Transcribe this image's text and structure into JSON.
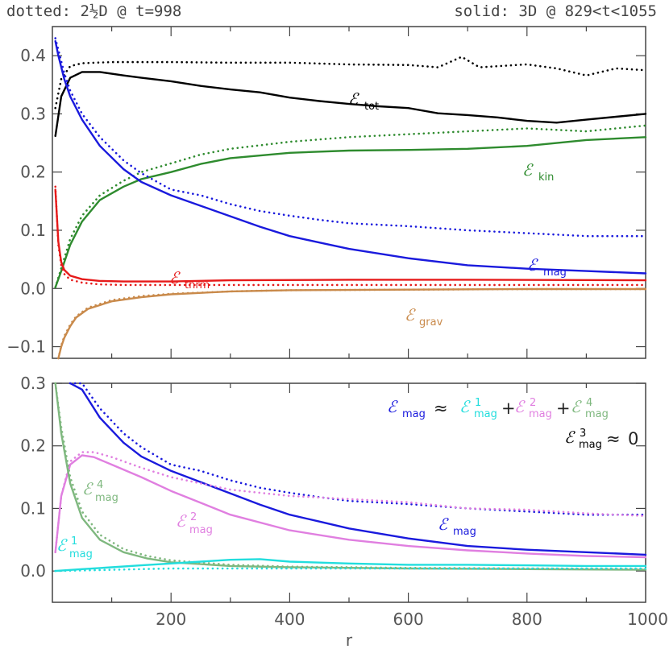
{
  "header": {
    "left": "dotted: 2½D @ t=998",
    "right": "solid: 3D @ 829<t<1055"
  },
  "chart_data": [
    {
      "type": "line",
      "panel": "top",
      "xlim": [
        0,
        1000
      ],
      "ylim": [
        -0.12,
        0.45
      ],
      "yticks": [
        "0.4",
        "0.3",
        "0.2",
        "0.1",
        "0.0",
        "−0.1"
      ],
      "series": [
        {
          "name": "E_tot",
          "label": "ℰ",
          "sub": "tot",
          "color": "#000000",
          "style": "solid",
          "x": [
            5,
            15,
            30,
            50,
            80,
            120,
            150,
            200,
            250,
            300,
            350,
            400,
            450,
            500,
            550,
            600,
            650,
            700,
            750,
            800,
            850,
            900,
            950,
            1000
          ],
          "y": [
            0.262,
            0.33,
            0.362,
            0.372,
            0.372,
            0.366,
            0.362,
            0.356,
            0.348,
            0.342,
            0.337,
            0.328,
            0.322,
            0.317,
            0.313,
            0.31,
            0.301,
            0.298,
            0.294,
            0.288,
            0.285,
            0.29,
            0.295,
            0.3
          ]
        },
        {
          "name": "E_tot 2.5D",
          "color": "#000000",
          "style": "dotted",
          "x": [
            5,
            15,
            30,
            50,
            100,
            200,
            300,
            400,
            500,
            600,
            650,
            690,
            720,
            800,
            850,
            900,
            950,
            1000
          ],
          "y": [
            0.31,
            0.36,
            0.382,
            0.387,
            0.389,
            0.389,
            0.388,
            0.388,
            0.385,
            0.384,
            0.38,
            0.398,
            0.38,
            0.385,
            0.378,
            0.366,
            0.378,
            0.375
          ]
        },
        {
          "name": "E_kin",
          "label": "ℰ",
          "sub": "kin",
          "color": "#2e8b2e",
          "style": "solid",
          "x": [
            5,
            15,
            30,
            50,
            80,
            120,
            150,
            200,
            250,
            300,
            400,
            500,
            600,
            700,
            800,
            900,
            1000
          ],
          "y": [
            0.002,
            0.03,
            0.075,
            0.115,
            0.152,
            0.175,
            0.188,
            0.2,
            0.214,
            0.224,
            0.233,
            0.237,
            0.238,
            0.24,
            0.245,
            0.255,
            0.26
          ]
        },
        {
          "name": "E_kin 2.5D",
          "color": "#2e8b2e",
          "style": "dotted",
          "x": [
            5,
            15,
            30,
            50,
            80,
            120,
            150,
            200,
            250,
            300,
            400,
            500,
            600,
            700,
            800,
            900,
            1000
          ],
          "y": [
            0.002,
            0.035,
            0.085,
            0.125,
            0.16,
            0.185,
            0.2,
            0.215,
            0.23,
            0.24,
            0.252,
            0.26,
            0.265,
            0.27,
            0.275,
            0.27,
            0.28
          ]
        },
        {
          "name": "E_mag",
          "label": "ℰ",
          "sub": "mag",
          "color": "#1a1add",
          "style": "solid",
          "x": [
            5,
            10,
            20,
            30,
            50,
            80,
            120,
            150,
            200,
            250,
            300,
            350,
            400,
            450,
            500,
            600,
            700,
            800,
            900,
            1000
          ],
          "y": [
            0.425,
            0.4,
            0.36,
            0.33,
            0.29,
            0.245,
            0.205,
            0.183,
            0.16,
            0.142,
            0.124,
            0.106,
            0.09,
            0.079,
            0.068,
            0.052,
            0.04,
            0.034,
            0.03,
            0.026
          ]
        },
        {
          "name": "E_mag 2.5D",
          "color": "#1a1add",
          "style": "dotted",
          "x": [
            5,
            10,
            20,
            30,
            50,
            80,
            120,
            150,
            200,
            250,
            300,
            350,
            400,
            450,
            500,
            600,
            700,
            800,
            900,
            1000
          ],
          "y": [
            0.43,
            0.41,
            0.37,
            0.34,
            0.3,
            0.26,
            0.22,
            0.198,
            0.17,
            0.16,
            0.145,
            0.133,
            0.125,
            0.118,
            0.112,
            0.107,
            0.1,
            0.095,
            0.09,
            0.09
          ]
        },
        {
          "name": "E_thrm",
          "label": "ℰ",
          "sub": "thrm",
          "color": "#e61a1a",
          "style": "solid",
          "x": [
            5,
            10,
            15,
            20,
            30,
            50,
            80,
            120,
            200,
            300,
            500,
            700,
            1000
          ],
          "y": [
            0.17,
            0.08,
            0.045,
            0.032,
            0.022,
            0.016,
            0.013,
            0.012,
            0.012,
            0.014,
            0.015,
            0.015,
            0.014
          ]
        },
        {
          "name": "E_thrm 2.5D",
          "color": "#e61a1a",
          "style": "dotted",
          "x": [
            5,
            10,
            15,
            20,
            30,
            50,
            80,
            120,
            200,
            300,
            500,
            700,
            1000
          ],
          "y": [
            0.175,
            0.075,
            0.04,
            0.025,
            0.015,
            0.01,
            0.007,
            0.006,
            0.006,
            0.006,
            0.006,
            0.006,
            0.006
          ]
        },
        {
          "name": "E_grav",
          "label": "ℰ",
          "sub": "grav",
          "color": "#c98a4b",
          "style": "solid",
          "x": [
            10,
            15,
            20,
            30,
            40,
            60,
            100,
            150,
            200,
            300,
            400,
            600,
            800,
            1000
          ],
          "y": [
            -0.12,
            -0.1,
            -0.085,
            -0.065,
            -0.05,
            -0.035,
            -0.022,
            -0.015,
            -0.01,
            -0.005,
            -0.003,
            -0.002,
            -0.001,
            -0.001
          ]
        },
        {
          "name": "E_grav 2.5D",
          "color": "#c98a4b",
          "style": "dotted",
          "x": [
            10,
            15,
            20,
            30,
            40,
            60,
            100,
            150,
            200,
            300,
            400,
            600,
            800,
            1000
          ],
          "y": [
            -0.12,
            -0.098,
            -0.082,
            -0.062,
            -0.048,
            -0.033,
            -0.02,
            -0.013,
            -0.009,
            -0.005,
            -0.003,
            -0.002,
            -0.001,
            -0.001
          ]
        }
      ]
    },
    {
      "type": "line",
      "panel": "bottom",
      "xlabel": "r",
      "xlim": [
        0,
        1000
      ],
      "ylim": [
        -0.05,
        0.3
      ],
      "xticks": [
        "200",
        "400",
        "600",
        "800",
        "1000"
      ],
      "yticks": [
        "0.3",
        "0.2",
        "0.1",
        "0.0"
      ],
      "series": [
        {
          "name": "E_mag",
          "label": "ℰ",
          "sub": "mag",
          "color": "#1a1add",
          "style": "solid",
          "x": [
            30,
            50,
            80,
            120,
            150,
            200,
            250,
            300,
            350,
            400,
            450,
            500,
            600,
            700,
            800,
            900,
            1000
          ],
          "y": [
            0.33,
            0.29,
            0.245,
            0.205,
            0.183,
            0.16,
            0.142,
            0.124,
            0.106,
            0.09,
            0.079,
            0.068,
            0.052,
            0.04,
            0.034,
            0.03,
            0.026
          ]
        },
        {
          "name": "E_mag 2.5D",
          "color": "#1a1add",
          "style": "dotted",
          "x": [
            30,
            50,
            80,
            120,
            150,
            200,
            250,
            300,
            350,
            400,
            450,
            500,
            600,
            700,
            800,
            900,
            1000
          ],
          "y": [
            0.34,
            0.3,
            0.26,
            0.22,
            0.198,
            0.17,
            0.16,
            0.145,
            0.133,
            0.125,
            0.118,
            0.112,
            0.107,
            0.1,
            0.095,
            0.09,
            0.09
          ]
        },
        {
          "name": "E_mag^2",
          "label": "ℰ",
          "sub": "mag",
          "sup": "2",
          "color": "#e07fe0",
          "style": "solid",
          "x": [
            5,
            15,
            30,
            50,
            70,
            100,
            150,
            200,
            300,
            400,
            500,
            600,
            700,
            800,
            900,
            1000
          ],
          "y": [
            0.03,
            0.12,
            0.17,
            0.185,
            0.182,
            0.17,
            0.15,
            0.128,
            0.09,
            0.065,
            0.05,
            0.04,
            0.033,
            0.028,
            0.024,
            0.022
          ]
        },
        {
          "name": "E_mag^2 2.5D",
          "color": "#e07fe0",
          "style": "dotted",
          "x": [
            5,
            15,
            30,
            50,
            70,
            100,
            150,
            200,
            300,
            400,
            500,
            600,
            700,
            800,
            900,
            1000
          ],
          "y": [
            0.03,
            0.12,
            0.175,
            0.19,
            0.19,
            0.182,
            0.165,
            0.15,
            0.13,
            0.12,
            0.115,
            0.11,
            0.1,
            0.098,
            0.092,
            0.088
          ]
        },
        {
          "name": "E_mag^4",
          "label": "ℰ",
          "sub": "mag",
          "sup": "4",
          "color": "#7fb87f",
          "style": "solid",
          "x": [
            5,
            15,
            30,
            50,
            80,
            120,
            160,
            200,
            300,
            400,
            600,
            800,
            1000
          ],
          "y": [
            0.3,
            0.22,
            0.14,
            0.085,
            0.05,
            0.03,
            0.02,
            0.014,
            0.008,
            0.006,
            0.004,
            0.003,
            0.002
          ]
        },
        {
          "name": "E_mag^4 2.5D",
          "color": "#7fb87f",
          "style": "dotted",
          "x": [
            5,
            15,
            30,
            50,
            80,
            120,
            160,
            200,
            300,
            400,
            600,
            800,
            1000
          ],
          "y": [
            0.3,
            0.23,
            0.15,
            0.095,
            0.058,
            0.035,
            0.024,
            0.017,
            0.01,
            0.007,
            0.005,
            0.004,
            0.003
          ]
        },
        {
          "name": "E_mag^1",
          "label": "ℰ",
          "sub": "mag",
          "sup": "1",
          "color": "#22dddd",
          "style": "solid",
          "x": [
            5,
            50,
            100,
            150,
            200,
            250,
            300,
            350,
            400,
            500,
            600,
            700,
            800,
            900,
            1000
          ],
          "y": [
            0.0,
            0.003,
            0.006,
            0.009,
            0.012,
            0.015,
            0.018,
            0.019,
            0.015,
            0.012,
            0.01,
            0.01,
            0.009,
            0.008,
            0.008
          ]
        },
        {
          "name": "E_mag^1 2.5D",
          "color": "#22dddd",
          "style": "dotted",
          "x": [
            5,
            100,
            200,
            300,
            400,
            600,
            800,
            1000
          ],
          "y": [
            0.0,
            0.002,
            0.004,
            0.004,
            0.004,
            0.004,
            0.004,
            0.004
          ]
        }
      ]
    }
  ],
  "annotations": {
    "eq_lhs": "ℰ",
    "eq_sub": "mag",
    "approx": "≈",
    "plus": "+",
    "sup1": "1",
    "sup2": "2",
    "sup3": "3",
    "sup4": "4",
    "zero": "0"
  }
}
